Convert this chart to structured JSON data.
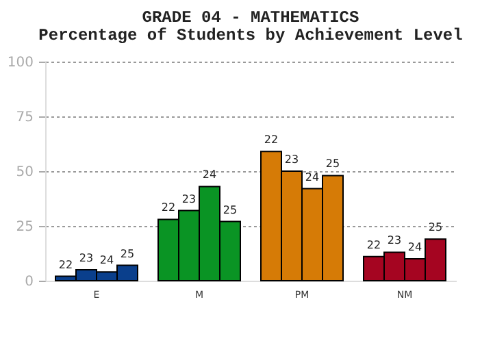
{
  "chart_data": {
    "type": "bar",
    "title": "GRADE 04 - MATHEMATICS",
    "subtitle": "Percentage of Students by Achievement Level",
    "categories": [
      "E",
      "M",
      "PM",
      "NM"
    ],
    "series": [
      {
        "name": "22",
        "colors": [
          "#0a3f8c",
          "#0a9424",
          "#d67b06",
          "#a50521"
        ],
        "values": [
          2,
          28,
          59,
          11
        ]
      },
      {
        "name": "23",
        "colors": [
          "#0a3f8c",
          "#0a9424",
          "#d67b06",
          "#a50521"
        ],
        "values": [
          5,
          32,
          50,
          13
        ]
      },
      {
        "name": "24",
        "colors": [
          "#0a3f8c",
          "#0a9424",
          "#d67b06",
          "#a50521"
        ],
        "values": [
          4,
          43,
          42,
          10
        ]
      },
      {
        "name": "25",
        "colors": [
          "#0a3f8c",
          "#0a9424",
          "#d67b06",
          "#a50521"
        ],
        "values": [
          7,
          27,
          48,
          19
        ]
      }
    ],
    "ylim": [
      0,
      100
    ],
    "yticks": [
      0,
      25,
      50,
      75,
      100
    ],
    "grid": "y"
  }
}
